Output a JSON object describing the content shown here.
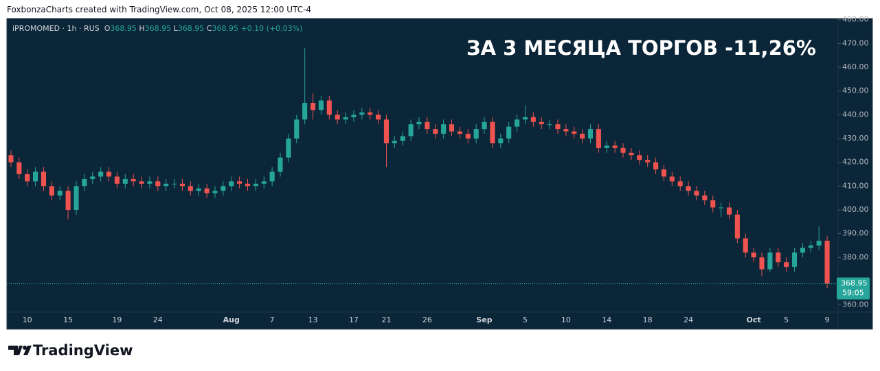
{
  "header": {
    "text": "FoxbonzaCharts created with TradingView.com, Oct 08, 2025 12:00 UTC-4"
  },
  "chart_data": {
    "type": "candlestick",
    "title": "ЗА 3 МЕСЯЦА ТОРГОВ -11,26%",
    "symbol": "iPROMOMED · 1h · RUS",
    "legend": {
      "o_label": "O",
      "o": 368.95,
      "h_label": "H",
      "h": 368.95,
      "l_label": "L",
      "l": 368.95,
      "c_label": "C",
      "c": 368.95,
      "change": "+0.10 (+0.03%)"
    },
    "last_price": 368.95,
    "countdown": "59:05",
    "up_color": "#26a69a",
    "down_color": "#ef5350",
    "categories": [
      null,
      null,
      "10",
      null,
      null,
      null,
      null,
      "15",
      null,
      null,
      null,
      null,
      null,
      "19",
      null,
      null,
      null,
      null,
      "24",
      null,
      null,
      null,
      null,
      null,
      null,
      null,
      null,
      "Aug",
      null,
      null,
      null,
      null,
      "7",
      null,
      null,
      null,
      null,
      "13",
      null,
      null,
      null,
      null,
      "17",
      null,
      null,
      null,
      "21",
      null,
      null,
      null,
      null,
      "26",
      null,
      null,
      null,
      null,
      null,
      null,
      "Sep",
      null,
      null,
      null,
      null,
      "5",
      null,
      null,
      null,
      null,
      "10",
      null,
      null,
      null,
      null,
      "14",
      null,
      null,
      null,
      null,
      "18",
      null,
      null,
      null,
      null,
      "24",
      null,
      null,
      null,
      null,
      null,
      null,
      null,
      "Oct",
      null,
      null,
      null,
      "5",
      null,
      null,
      null,
      null,
      "9"
    ],
    "open": [
      423,
      420,
      415,
      412,
      416,
      410,
      406,
      408,
      400,
      410,
      413,
      414,
      416,
      414,
      411,
      413,
      412,
      411,
      412,
      410,
      411,
      411,
      410,
      408,
      409,
      407,
      408,
      410,
      412,
      411,
      410,
      411,
      412,
      416,
      422,
      430,
      438,
      445,
      442,
      446,
      440,
      438,
      439,
      440,
      441,
      440,
      438,
      428,
      429,
      431,
      436,
      437,
      434,
      432,
      436,
      433,
      432,
      430,
      434,
      437,
      428,
      430,
      435,
      438,
      439,
      437,
      436,
      436,
      434,
      433,
      432,
      430,
      434,
      426,
      427,
      426,
      424,
      423,
      421,
      420,
      417,
      414,
      412,
      410,
      408,
      406,
      404,
      401,
      401,
      398,
      388,
      382,
      380,
      375,
      382,
      378,
      376,
      382,
      384,
      385,
      387
    ],
    "high": [
      425,
      422,
      417,
      418,
      418,
      412,
      410,
      410,
      412,
      415,
      416,
      418,
      418,
      416,
      415,
      415,
      414,
      414,
      414,
      413,
      413,
      413,
      412,
      411,
      411,
      410,
      412,
      414,
      414,
      413,
      413,
      414,
      418,
      424,
      432,
      440,
      468,
      449,
      448,
      448,
      442,
      441,
      442,
      443,
      443,
      442,
      440,
      431,
      433,
      438,
      439,
      439,
      436,
      438,
      438,
      435,
      434,
      436,
      439,
      439,
      432,
      437,
      440,
      444,
      441,
      439,
      438,
      438,
      436,
      435,
      434,
      436,
      436,
      429,
      429,
      428,
      426,
      425,
      423,
      422,
      419,
      416,
      414,
      412,
      410,
      408,
      406,
      403,
      403,
      400,
      390,
      384,
      382,
      384,
      384,
      380,
      384,
      386,
      387,
      393,
      389
    ],
    "low": [
      418,
      413,
      410,
      410,
      408,
      404,
      404,
      396,
      398,
      408,
      411,
      412,
      412,
      409,
      409,
      410,
      409,
      409,
      408,
      408,
      409,
      408,
      406,
      406,
      405,
      405,
      406,
      408,
      409,
      408,
      408,
      409,
      410,
      414,
      420,
      428,
      436,
      438,
      440,
      438,
      436,
      436,
      437,
      438,
      438,
      436,
      418,
      426,
      427,
      429,
      434,
      432,
      430,
      430,
      431,
      430,
      428,
      428,
      432,
      426,
      426,
      428,
      433,
      436,
      435,
      434,
      434,
      432,
      431,
      430,
      428,
      428,
      424,
      424,
      424,
      422,
      421,
      419,
      418,
      415,
      412,
      410,
      408,
      406,
      404,
      402,
      399,
      397,
      396,
      386,
      380,
      378,
      372,
      374,
      376,
      374,
      374,
      380,
      382,
      383,
      367
    ],
    "close": [
      420,
      415,
      412,
      416,
      410,
      406,
      408,
      400,
      410,
      413,
      414,
      416,
      414,
      411,
      413,
      412,
      411,
      412,
      410,
      411,
      411,
      410,
      408,
      409,
      407,
      408,
      410,
      412,
      411,
      410,
      411,
      412,
      416,
      422,
      430,
      438,
      445,
      442,
      446,
      440,
      438,
      439,
      440,
      441,
      440,
      438,
      428,
      429,
      431,
      436,
      437,
      434,
      432,
      436,
      433,
      432,
      430,
      434,
      437,
      428,
      430,
      435,
      438,
      439,
      437,
      436,
      436,
      434,
      433,
      432,
      430,
      434,
      426,
      427,
      426,
      424,
      423,
      421,
      420,
      417,
      414,
      412,
      410,
      408,
      406,
      404,
      401,
      401,
      398,
      388,
      382,
      380,
      375,
      382,
      378,
      376,
      382,
      384,
      385,
      387,
      368.95
    ],
    "ylim": [
      357,
      480.5
    ],
    "yticks": [
      {
        "value": 360,
        "label": "360.00"
      },
      {
        "value": 370,
        "label": "370.00"
      },
      {
        "value": 380,
        "label": "380.00"
      },
      {
        "value": 390,
        "label": "390.00"
      },
      {
        "value": 400,
        "label": "400.00"
      },
      {
        "value": 410,
        "label": "410.00"
      },
      {
        "value": 420,
        "label": "420.00"
      },
      {
        "value": 430,
        "label": "430.00"
      },
      {
        "value": 440,
        "label": "440.00"
      },
      {
        "value": 450,
        "label": "450.00"
      },
      {
        "value": 460,
        "label": "460.00"
      },
      {
        "value": 470,
        "label": "470.00"
      },
      {
        "value": 480,
        "label": "480.00"
      }
    ]
  },
  "footer": {
    "brand": "TradingView"
  }
}
